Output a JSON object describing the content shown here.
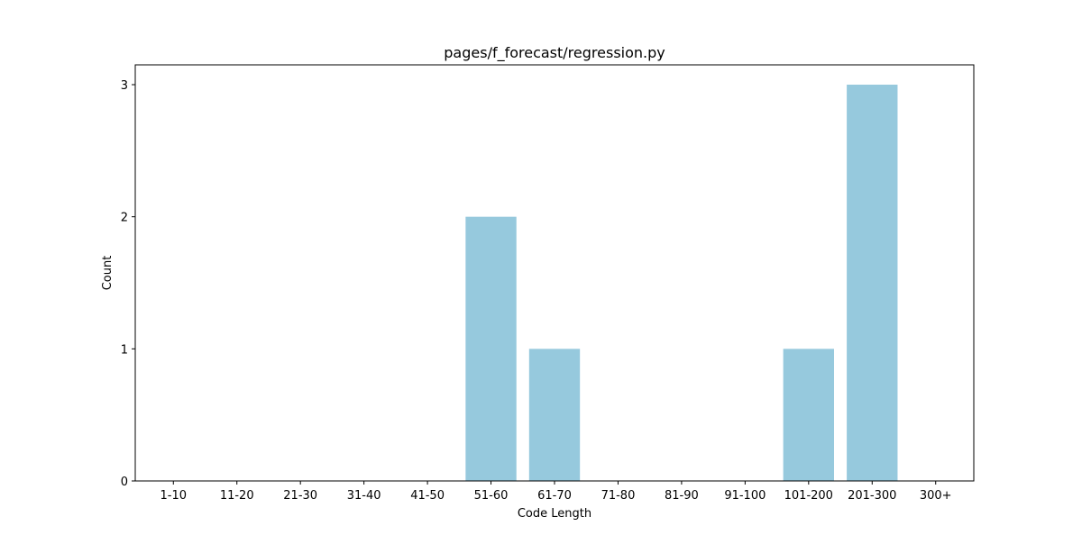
{
  "chart_data": {
    "type": "bar",
    "title": "pages/f_forecast/regression.py",
    "xlabel": "Code Length",
    "ylabel": "Count",
    "categories": [
      "1-10",
      "11-20",
      "21-30",
      "31-40",
      "41-50",
      "51-60",
      "61-70",
      "71-80",
      "81-90",
      "91-100",
      "101-200",
      "201-300",
      "300+"
    ],
    "values": [
      0,
      0,
      0,
      0,
      0,
      2,
      1,
      0,
      0,
      0,
      1,
      3,
      0
    ],
    "yticks": [
      0,
      1,
      2,
      3
    ],
    "ylim": [
      0,
      3.15
    ],
    "bar_color": "#96c9dd",
    "grid": false,
    "legend": "none"
  }
}
